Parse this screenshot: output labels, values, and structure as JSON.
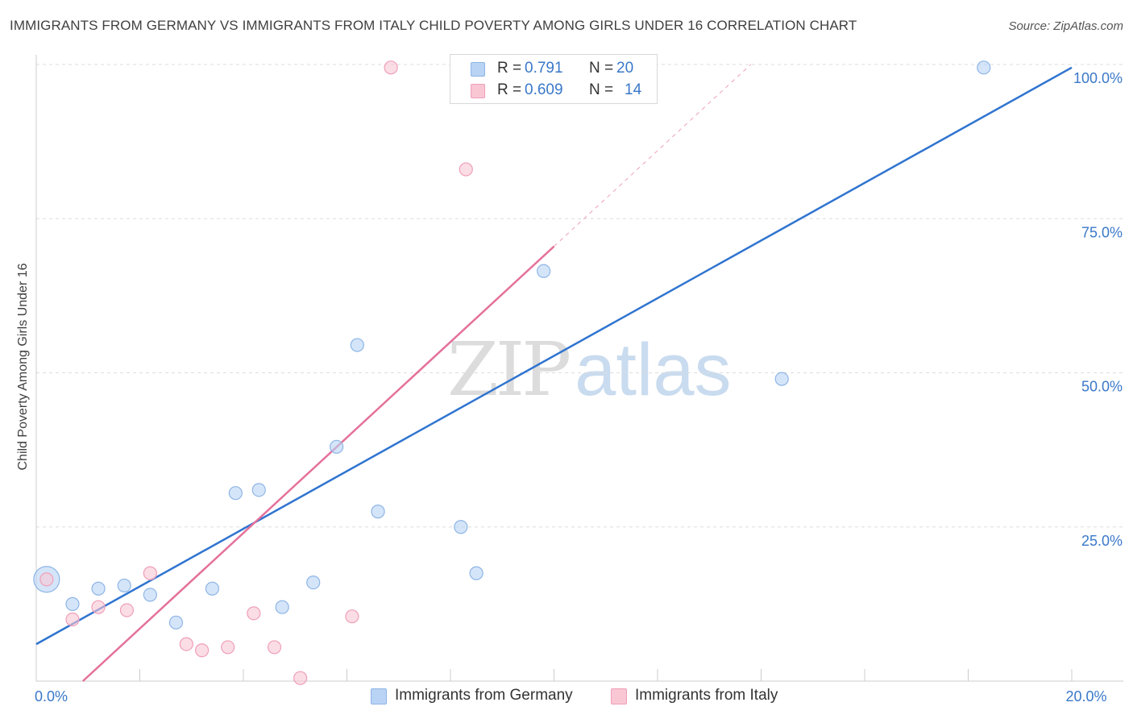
{
  "title": "IMMIGRANTS FROM GERMANY VS IMMIGRANTS FROM ITALY CHILD POVERTY AMONG GIRLS UNDER 16 CORRELATION CHART",
  "source": "Source: ZipAtlas.com",
  "watermark": {
    "zip": "ZIP",
    "atlas": "atlas"
  },
  "colors": {
    "germany_fill": "#b9d3f5",
    "germany_stroke": "#8db5e6",
    "germany_line": "#2f74d0",
    "italy_fill": "#f9c6d4",
    "italy_stroke": "#ef9fb8",
    "italy_line": "#e4719a",
    "tick_label": "#3a78c9",
    "grid": "#dddddd"
  },
  "legend_top": [
    {
      "r_label": "R =",
      "r_value": "0.791",
      "n_label": "N =",
      "n_value": "20"
    },
    {
      "r_label": "R =",
      "r_value": "0.609",
      "n_label": "N =",
      "n_value": "14"
    }
  ],
  "legend_bottom": [
    {
      "label": "Immigrants from Germany"
    },
    {
      "label": "Immigrants from Italy"
    }
  ],
  "chart_data": {
    "type": "scatter",
    "title": "IMMIGRANTS FROM GERMANY VS IMMIGRANTS FROM ITALY CHILD POVERTY AMONG GIRLS UNDER 16 CORRELATION CHART",
    "xlabel": "",
    "ylabel": "Child Poverty Among Girls Under 16",
    "xlim": [
      0,
      20
    ],
    "ylim": [
      0,
      100
    ],
    "x_tick_labels": [
      {
        "value": 0,
        "label": "0.0%"
      },
      {
        "value": 20,
        "label": "20.0%"
      }
    ],
    "y_tick_labels": [
      {
        "value": 25,
        "label": "25.0%"
      },
      {
        "value": 50,
        "label": "50.0%"
      },
      {
        "value": 75,
        "label": "75.0%"
      },
      {
        "value": 100,
        "label": "100.0%"
      }
    ],
    "grid": true,
    "legend_position": "bottom",
    "series": [
      {
        "name": "Immigrants from Germany",
        "points": [
          {
            "x": 0.2,
            "y": 16.5,
            "big": true
          },
          {
            "x": 0.7,
            "y": 12.5
          },
          {
            "x": 1.2,
            "y": 15.0
          },
          {
            "x": 1.7,
            "y": 15.5
          },
          {
            "x": 2.2,
            "y": 14.0
          },
          {
            "x": 2.7,
            "y": 9.5
          },
          {
            "x": 3.4,
            "y": 15.0
          },
          {
            "x": 3.85,
            "y": 30.5
          },
          {
            "x": 4.3,
            "y": 31.0
          },
          {
            "x": 4.75,
            "y": 12.0
          },
          {
            "x": 5.35,
            "y": 16.0
          },
          {
            "x": 5.8,
            "y": 38.0
          },
          {
            "x": 6.2,
            "y": 54.5
          },
          {
            "x": 6.6,
            "y": 27.5
          },
          {
            "x": 8.2,
            "y": 25.0
          },
          {
            "x": 8.5,
            "y": 17.5
          },
          {
            "x": 9.8,
            "y": 66.5
          },
          {
            "x": 10.4,
            "y": 99.5
          },
          {
            "x": 14.4,
            "y": 49.0
          },
          {
            "x": 18.3,
            "y": 99.5
          }
        ],
        "trendline": {
          "x": [
            0,
            20
          ],
          "y": [
            6.0,
            99.5
          ]
        }
      },
      {
        "name": "Immigrants from Italy",
        "points": [
          {
            "x": 0.2,
            "y": 16.5
          },
          {
            "x": 0.7,
            "y": 10.0
          },
          {
            "x": 1.2,
            "y": 12.0
          },
          {
            "x": 1.75,
            "y": 11.5
          },
          {
            "x": 2.2,
            "y": 17.5
          },
          {
            "x": 2.9,
            "y": 6.0
          },
          {
            "x": 3.2,
            "y": 5.0
          },
          {
            "x": 3.7,
            "y": 5.5
          },
          {
            "x": 4.2,
            "y": 11.0
          },
          {
            "x": 4.6,
            "y": 5.5
          },
          {
            "x": 5.1,
            "y": 0.5
          },
          {
            "x": 6.1,
            "y": 10.5
          },
          {
            "x": 6.85,
            "y": 99.5
          },
          {
            "x": 8.3,
            "y": 83.0
          }
        ],
        "trendline": {
          "x": [
            0.9,
            10.0
          ],
          "y": [
            0,
            70.5
          ]
        },
        "trendline_extension": {
          "x": [
            10.0,
            13.8
          ],
          "y": [
            70.5,
            100
          ]
        }
      }
    ]
  }
}
